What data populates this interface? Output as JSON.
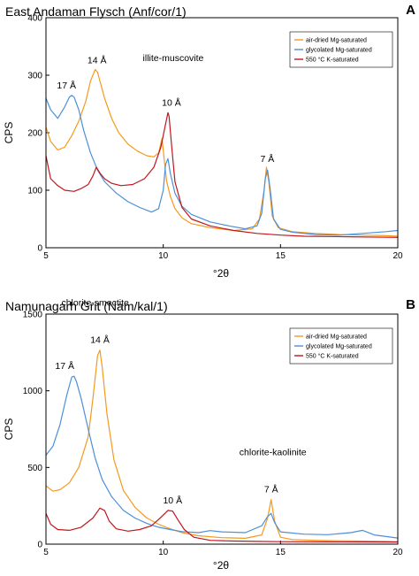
{
  "chart_data": [
    {
      "type": "line",
      "panel_label": "A",
      "title": "East Andaman Flysch (Anf/cor/1)",
      "xlabel": "°2θ",
      "ylabel": "CPS",
      "xlim": [
        5,
        20
      ],
      "ylim": [
        0,
        400
      ],
      "xticks": [
        5,
        10,
        15,
        20
      ],
      "yticks": [
        0,
        100,
        200,
        300,
        400
      ],
      "legend_position": "top-right",
      "grid": false,
      "series": [
        {
          "name": "air-dried Mg-saturated",
          "color": "#f39a1e",
          "x": [
            5.0,
            5.2,
            5.5,
            5.8,
            6.1,
            6.4,
            6.7,
            6.9,
            7.1,
            7.2,
            7.3,
            7.5,
            7.8,
            8.1,
            8.5,
            8.9,
            9.3,
            9.6,
            9.8,
            9.95,
            10.05,
            10.15,
            10.3,
            10.5,
            10.8,
            11.2,
            12.0,
            13.0,
            13.8,
            14.1,
            14.3,
            14.4,
            14.5,
            14.65,
            14.9,
            15.5,
            16.5,
            17.5,
            18.5,
            19.5,
            20.0
          ],
          "y": [
            210,
            185,
            170,
            175,
            195,
            220,
            255,
            290,
            310,
            305,
            290,
            260,
            225,
            200,
            180,
            168,
            160,
            158,
            165,
            190,
            150,
            115,
            90,
            68,
            52,
            42,
            35,
            30,
            33,
            50,
            100,
            140,
            115,
            55,
            35,
            28,
            25,
            23,
            22,
            21,
            20
          ]
        },
        {
          "name": "glycolated Mg-saturated",
          "color": "#4c8fd9",
          "x": [
            5.0,
            5.2,
            5.5,
            5.8,
            6.0,
            6.1,
            6.2,
            6.4,
            6.6,
            6.9,
            7.2,
            7.5,
            8.0,
            8.5,
            9.0,
            9.5,
            9.8,
            10.0,
            10.1,
            10.2,
            10.3,
            10.5,
            10.8,
            11.2,
            12.0,
            12.8,
            13.5,
            14.0,
            14.2,
            14.35,
            14.45,
            14.55,
            14.7,
            15.0,
            15.5,
            16.5,
            17.5,
            18.5,
            19.5,
            20.0
          ],
          "y": [
            260,
            240,
            225,
            245,
            262,
            265,
            262,
            240,
            205,
            165,
            135,
            115,
            95,
            80,
            70,
            62,
            68,
            100,
            145,
            155,
            130,
            95,
            72,
            58,
            45,
            38,
            33,
            38,
            60,
            120,
            135,
            105,
            50,
            32,
            27,
            23,
            22,
            25,
            28,
            30
          ]
        },
        {
          "name": "550 °C K-saturated",
          "color": "#c0171d",
          "x": [
            5.0,
            5.2,
            5.5,
            5.8,
            6.2,
            6.5,
            6.8,
            7.0,
            7.15,
            7.3,
            7.5,
            7.8,
            8.2,
            8.7,
            9.2,
            9.6,
            9.9,
            10.1,
            10.2,
            10.25,
            10.35,
            10.5,
            10.8,
            11.2,
            12.0,
            13.0,
            14.0,
            15.0,
            16.0,
            18.0,
            20.0
          ],
          "y": [
            160,
            120,
            108,
            100,
            98,
            103,
            110,
            125,
            140,
            130,
            120,
            112,
            108,
            110,
            120,
            140,
            175,
            215,
            235,
            228,
            180,
            115,
            70,
            50,
            38,
            30,
            25,
            22,
            20,
            19,
            18
          ]
        }
      ],
      "annotations": [
        {
          "text": "17 Å",
          "x": 6.1,
          "y": 265
        },
        {
          "text": "14 Å",
          "x": 7.1,
          "y": 310
        },
        {
          "text": "illite-muscovite",
          "x": 10.2,
          "y": 260
        },
        {
          "text": "10 Å",
          "x": 10.2,
          "y": 235
        },
        {
          "text": "7 Å",
          "x": 14.4,
          "y": 140
        }
      ]
    },
    {
      "type": "line",
      "panel_label": "B",
      "title": "Namunagarh Grit (Nam/kal/1)",
      "xlabel": "°2θ",
      "ylabel": "CPS",
      "xlim": [
        5,
        20
      ],
      "ylim": [
        0,
        1500
      ],
      "xticks": [
        5,
        10,
        15,
        20
      ],
      "yticks": [
        0,
        500,
        1000,
        1500
      ],
      "legend_position": "top-right",
      "grid": false,
      "series": [
        {
          "name": "air-dried Mg-saturated",
          "color": "#f39a1e",
          "x": [
            5.0,
            5.3,
            5.6,
            6.0,
            6.4,
            6.8,
            7.0,
            7.2,
            7.3,
            7.4,
            7.6,
            7.9,
            8.3,
            8.8,
            9.3,
            9.8,
            10.3,
            10.8,
            11.5,
            12.5,
            13.5,
            14.2,
            14.45,
            14.6,
            14.75,
            15.0,
            15.5,
            16.5,
            17.5,
            18.5,
            19.5,
            20.0
          ],
          "y": [
            380,
            345,
            355,
            400,
            500,
            700,
            950,
            1230,
            1265,
            1150,
            850,
            550,
            350,
            240,
            170,
            130,
            100,
            75,
            55,
            42,
            38,
            60,
            170,
            290,
            150,
            45,
            30,
            25,
            22,
            20,
            18,
            16
          ]
        },
        {
          "name": "glycolated Mg-saturated",
          "color": "#4c8fd9",
          "x": [
            5.0,
            5.3,
            5.6,
            5.9,
            6.1,
            6.2,
            6.3,
            6.5,
            6.8,
            7.1,
            7.4,
            7.8,
            8.3,
            8.8,
            9.3,
            9.8,
            10.3,
            10.8,
            11.5,
            12.0,
            12.5,
            13.5,
            14.2,
            14.45,
            14.6,
            14.75,
            15.0,
            16.0,
            17.0,
            18.0,
            18.5,
            19.0,
            20.0
          ],
          "y": [
            580,
            640,
            780,
            980,
            1090,
            1095,
            1060,
            950,
            750,
            560,
            420,
            310,
            220,
            170,
            135,
            110,
            95,
            82,
            75,
            88,
            80,
            75,
            120,
            180,
            200,
            140,
            80,
            65,
            62,
            75,
            90,
            60,
            40
          ]
        },
        {
          "name": "550 °C K-saturated",
          "color": "#c0171d",
          "x": [
            5.0,
            5.2,
            5.5,
            6.0,
            6.5,
            7.0,
            7.3,
            7.5,
            7.7,
            8.0,
            8.5,
            9.0,
            9.5,
            9.9,
            10.2,
            10.4,
            10.6,
            10.9,
            11.3,
            12.0,
            13.0,
            14.0,
            15.0,
            17.0,
            20.0
          ],
          "y": [
            200,
            130,
            95,
            90,
            110,
            170,
            235,
            220,
            150,
            100,
            85,
            95,
            120,
            175,
            220,
            215,
            165,
            95,
            45,
            25,
            20,
            18,
            16,
            15,
            14
          ]
        }
      ],
      "annotations": [
        {
          "text": "chlorite-smectite",
          "x": 7.4,
          "y": 1415
        },
        {
          "text": "14 Å",
          "x": 7.3,
          "y": 1265
        },
        {
          "text": "17 Å",
          "x": 6.1,
          "y": 1095
        },
        {
          "text": "10 Å",
          "x": 10.4,
          "y": 220
        },
        {
          "text": "chlorite-kaolinite",
          "x": 14.6,
          "y": 430
        },
        {
          "text": "7 Å",
          "x": 14.6,
          "y": 290
        }
      ]
    }
  ]
}
